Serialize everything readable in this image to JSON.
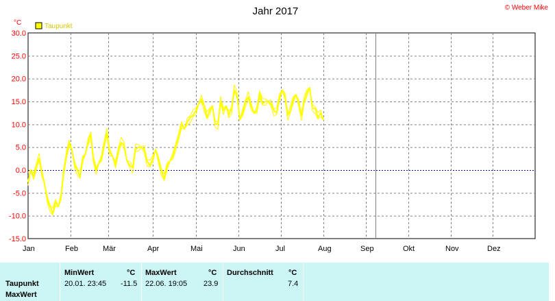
{
  "header": {
    "title": "Jahr 2017",
    "copyright": "© Weber Mike"
  },
  "colors": {
    "line": "#ffff00",
    "legend_text": "#d4c800",
    "axis_text": "#ff0000",
    "copyright": "#ff0000",
    "zero_line": "#0000a0",
    "grid": "#808080",
    "stats_bg": "#ccf5f5"
  },
  "chart_data": {
    "type": "line",
    "title": "Jahr 2017",
    "ylabel": "°C",
    "xlabel": "",
    "ylim": [
      -15,
      30
    ],
    "yticks": [
      "30.0",
      "25.0",
      "20.0",
      "15.0",
      "10.0",
      "5.0",
      "0.0",
      "-5.0",
      "-10.0",
      "-15.0"
    ],
    "xticks": [
      "Jan",
      "Feb",
      "Mär",
      "Apr",
      "Mai",
      "Jun",
      "Jul",
      "Aug",
      "Sep",
      "Okt",
      "Nov",
      "Dez"
    ],
    "grid": true,
    "legend": {
      "position": "top-left",
      "entries": [
        "Taupunkt"
      ]
    },
    "current_marker_date": "2017-09-08",
    "series": [
      {
        "name": "Taupunkt",
        "x_start": "2017-01-01",
        "x_step_days": 2,
        "values": [
          -2.5,
          0,
          -1.5,
          1,
          2.5,
          -0.5,
          -3,
          -6.5,
          -8,
          -9.5,
          -7,
          -8,
          -6,
          0,
          3,
          6,
          4.5,
          1,
          0,
          -1.5,
          2.5,
          3.5,
          6,
          8,
          2,
          0,
          1.5,
          2.5,
          6,
          8,
          4,
          3,
          1,
          4.5,
          6,
          5.5,
          2,
          1,
          0.5,
          4.5,
          5,
          5,
          4.5,
          2,
          1,
          2.5,
          4.5,
          2,
          0,
          -2,
          1,
          2,
          3,
          5.5,
          7,
          10,
          9,
          10.5,
          11.5,
          12,
          13,
          14.5,
          15.5,
          14,
          11.5,
          13,
          14,
          10,
          10,
          15,
          13,
          14,
          12,
          13.5,
          17.5,
          16.5,
          11,
          12.5,
          15,
          16,
          14,
          12.5,
          13,
          17,
          14.5,
          15,
          15,
          14.5,
          13,
          12.5,
          16,
          17.5,
          16,
          12,
          13,
          15.5,
          16.5,
          14.5,
          12,
          15,
          17,
          18,
          13.5,
          13.5,
          11.5,
          12.5,
          11
        ]
      }
    ]
  },
  "stats_table": {
    "columns": [
      {
        "label": "MinWert",
        "unit": "°C"
      },
      {
        "label": "MaxWert",
        "unit": "°C"
      },
      {
        "label": "Durchschnitt",
        "unit": "°C"
      }
    ],
    "rows": [
      {
        "label": "Taupunkt",
        "min_time": "20.01.  23:45",
        "min": "-11.5",
        "max_time": "22.06.  19:05",
        "max": "23.9",
        "avg": "7.4"
      },
      {
        "label": "MaxWert"
      }
    ]
  }
}
